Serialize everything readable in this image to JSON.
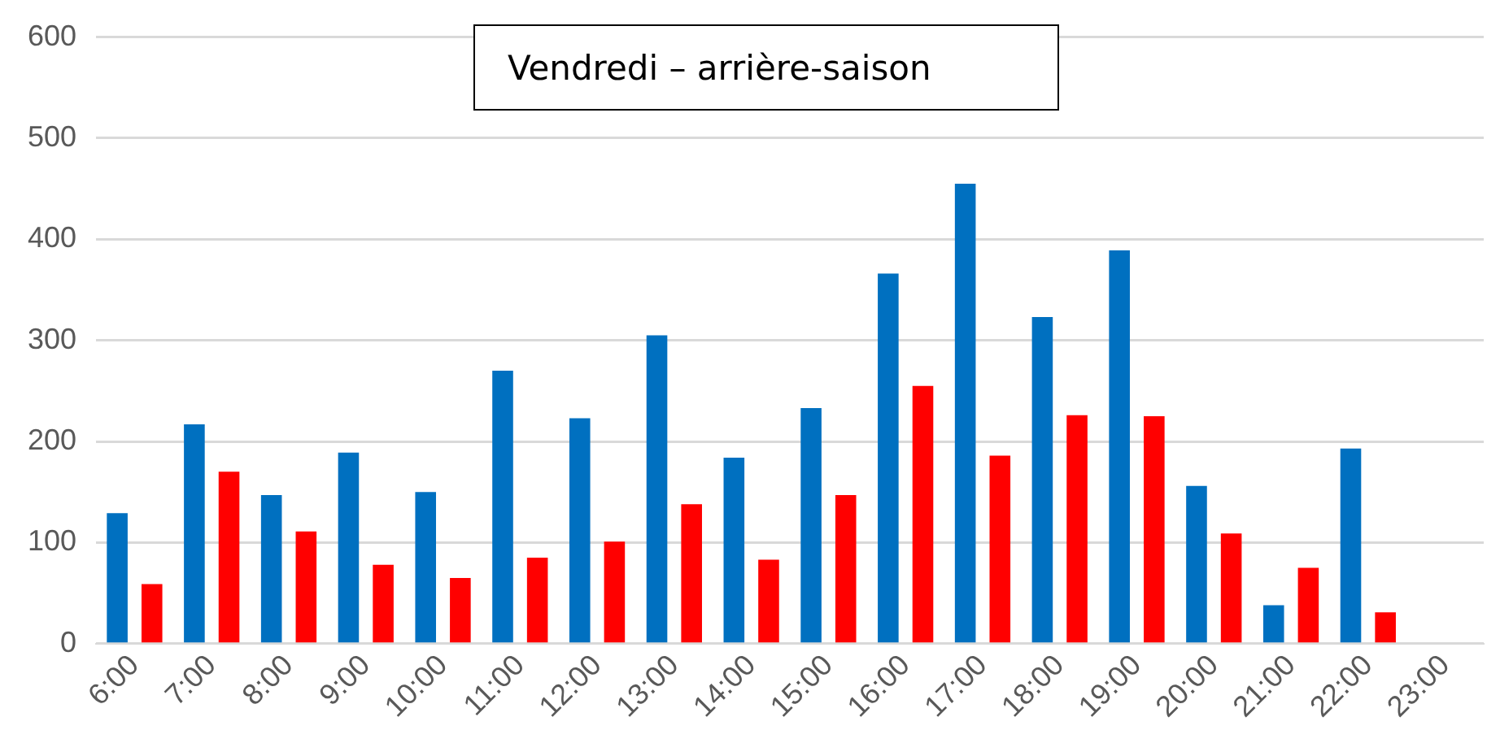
{
  "chart_data": {
    "type": "bar",
    "title": "Vendredi – arrière-saison",
    "categories": [
      "6:00",
      "7:00",
      "8:00",
      "9:00",
      "10:00",
      "11:00",
      "12:00",
      "13:00",
      "14:00",
      "15:00",
      "16:00",
      "17:00",
      "18:00",
      "19:00",
      "20:00",
      "21:00",
      "22:00",
      "23:00"
    ],
    "series": [
      {
        "color": "#0070c0",
        "values": [
          129,
          217,
          147,
          189,
          150,
          270,
          223,
          305,
          184,
          233,
          366,
          455,
          323,
          389,
          156,
          38,
          193,
          null
        ]
      },
      {
        "color": "#ff0000",
        "values": [
          59,
          170,
          111,
          78,
          65,
          85,
          101,
          138,
          83,
          147,
          255,
          186,
          226,
          225,
          109,
          75,
          31,
          null
        ]
      }
    ],
    "ylim": [
      0,
      600
    ],
    "yticks": [
      0,
      100,
      200,
      300,
      400,
      500,
      600
    ],
    "grid": "y",
    "legend": false
  }
}
